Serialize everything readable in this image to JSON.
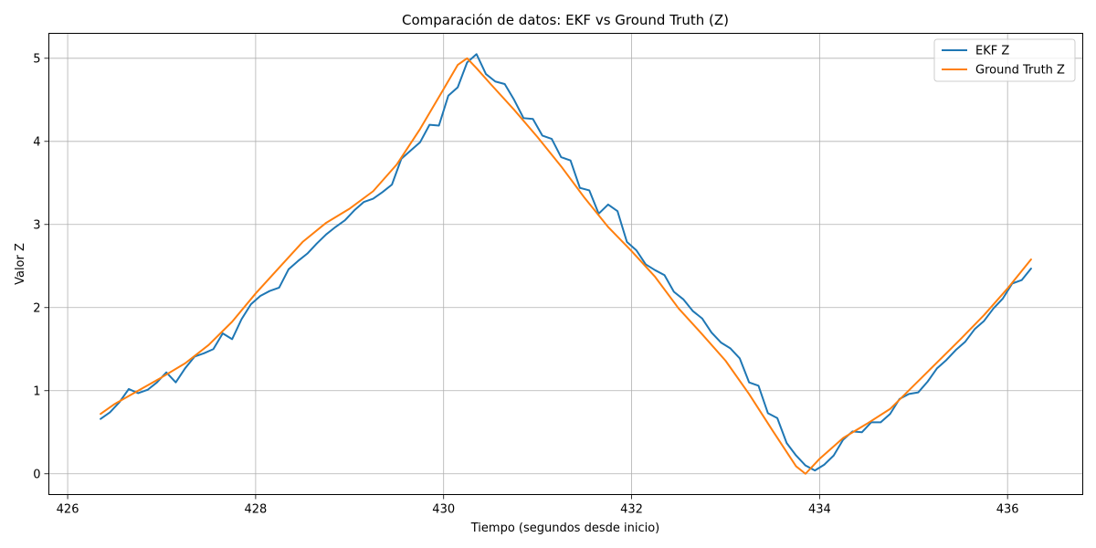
{
  "chart_data": {
    "type": "line",
    "title": "Comparación de datos: EKF vs Ground Truth (Z)",
    "xlabel": "Tiempo (segundos desde inicio)",
    "ylabel": "Valor Z",
    "xlim": [
      425.8,
      436.8
    ],
    "ylim": [
      -0.25,
      5.3
    ],
    "xticks": [
      426,
      428,
      430,
      432,
      434,
      436
    ],
    "yticks": [
      0,
      1,
      2,
      3,
      4,
      5
    ],
    "grid": true,
    "legend_position": "top-right",
    "series": [
      {
        "name": "EKF Z",
        "color": "#1f77b4",
        "x": [
          426.35,
          426.45,
          426.55,
          426.65,
          426.75,
          426.85,
          426.95,
          427.05,
          427.15,
          427.25,
          427.35,
          427.45,
          427.55,
          427.65,
          427.75,
          427.85,
          427.95,
          428.05,
          428.15,
          428.25,
          428.35,
          428.45,
          428.55,
          428.65,
          428.75,
          428.85,
          428.95,
          429.05,
          429.15,
          429.25,
          429.35,
          429.45,
          429.55,
          429.65,
          429.75,
          429.85,
          429.95,
          430.05,
          430.15,
          430.25,
          430.35,
          430.45,
          430.55,
          430.65,
          430.75,
          430.85,
          430.95,
          431.05,
          431.15,
          431.25,
          431.35,
          431.45,
          431.55,
          431.65,
          431.75,
          431.85,
          431.95,
          432.05,
          432.15,
          432.25,
          432.35,
          432.45,
          432.55,
          432.65,
          432.75,
          432.85,
          432.95,
          433.05,
          433.15,
          433.25,
          433.35,
          433.45,
          433.55,
          433.65,
          433.75,
          433.85,
          433.95,
          434.05,
          434.15,
          434.25,
          434.35,
          434.45,
          434.55,
          434.65,
          434.75,
          434.85,
          434.95,
          435.05,
          435.15,
          435.25,
          435.35,
          435.45,
          435.55,
          435.65,
          435.75,
          435.85,
          435.95,
          436.05,
          436.15,
          436.25
        ],
        "values": [
          0.66,
          0.74,
          0.86,
          1.02,
          0.97,
          1.01,
          1.1,
          1.22,
          1.1,
          1.27,
          1.41,
          1.45,
          1.5,
          1.69,
          1.62,
          1.86,
          2.04,
          2.14,
          2.2,
          2.24,
          2.46,
          2.56,
          2.65,
          2.77,
          2.88,
          2.97,
          3.05,
          3.17,
          3.27,
          3.31,
          3.39,
          3.48,
          3.79,
          3.89,
          3.99,
          4.2,
          4.19,
          4.55,
          4.65,
          4.95,
          5.05,
          4.81,
          4.72,
          4.69,
          4.5,
          4.28,
          4.27,
          4.07,
          4.03,
          3.81,
          3.77,
          3.44,
          3.41,
          3.13,
          3.24,
          3.16,
          2.79,
          2.69,
          2.52,
          2.45,
          2.39,
          2.19,
          2.1,
          1.96,
          1.87,
          1.7,
          1.58,
          1.51,
          1.39,
          1.1,
          1.06,
          0.73,
          0.67,
          0.37,
          0.22,
          0.1,
          0.04,
          0.11,
          0.22,
          0.41,
          0.51,
          0.5,
          0.62,
          0.62,
          0.72,
          0.9,
          0.96,
          0.98,
          1.11,
          1.27,
          1.37,
          1.49,
          1.59,
          1.74,
          1.84,
          1.99,
          2.11,
          2.29,
          2.33,
          2.47
        ]
      },
      {
        "name": "Ground Truth Z",
        "color": "#ff7f0e",
        "x": [
          426.35,
          426.5,
          426.75,
          427.0,
          427.25,
          427.5,
          427.75,
          428.0,
          428.25,
          428.5,
          428.75,
          429.0,
          429.25,
          429.5,
          429.75,
          430.0,
          430.15,
          430.25,
          430.35,
          430.5,
          430.75,
          431.0,
          431.25,
          431.5,
          431.75,
          432.0,
          432.25,
          432.5,
          432.75,
          433.0,
          433.25,
          433.5,
          433.75,
          433.85,
          434.0,
          434.25,
          434.5,
          434.75,
          435.0,
          435.25,
          435.5,
          435.75,
          436.0,
          436.25
        ],
        "values": [
          0.72,
          0.84,
          1.0,
          1.16,
          1.33,
          1.55,
          1.83,
          2.17,
          2.48,
          2.79,
          3.02,
          3.19,
          3.4,
          3.72,
          4.15,
          4.63,
          4.92,
          5.0,
          4.88,
          4.69,
          4.38,
          4.05,
          3.7,
          3.32,
          2.97,
          2.68,
          2.37,
          1.99,
          1.68,
          1.36,
          0.96,
          0.52,
          0.09,
          0.0,
          0.18,
          0.43,
          0.6,
          0.78,
          1.06,
          1.34,
          1.62,
          1.91,
          2.23,
          2.58
        ]
      }
    ]
  }
}
